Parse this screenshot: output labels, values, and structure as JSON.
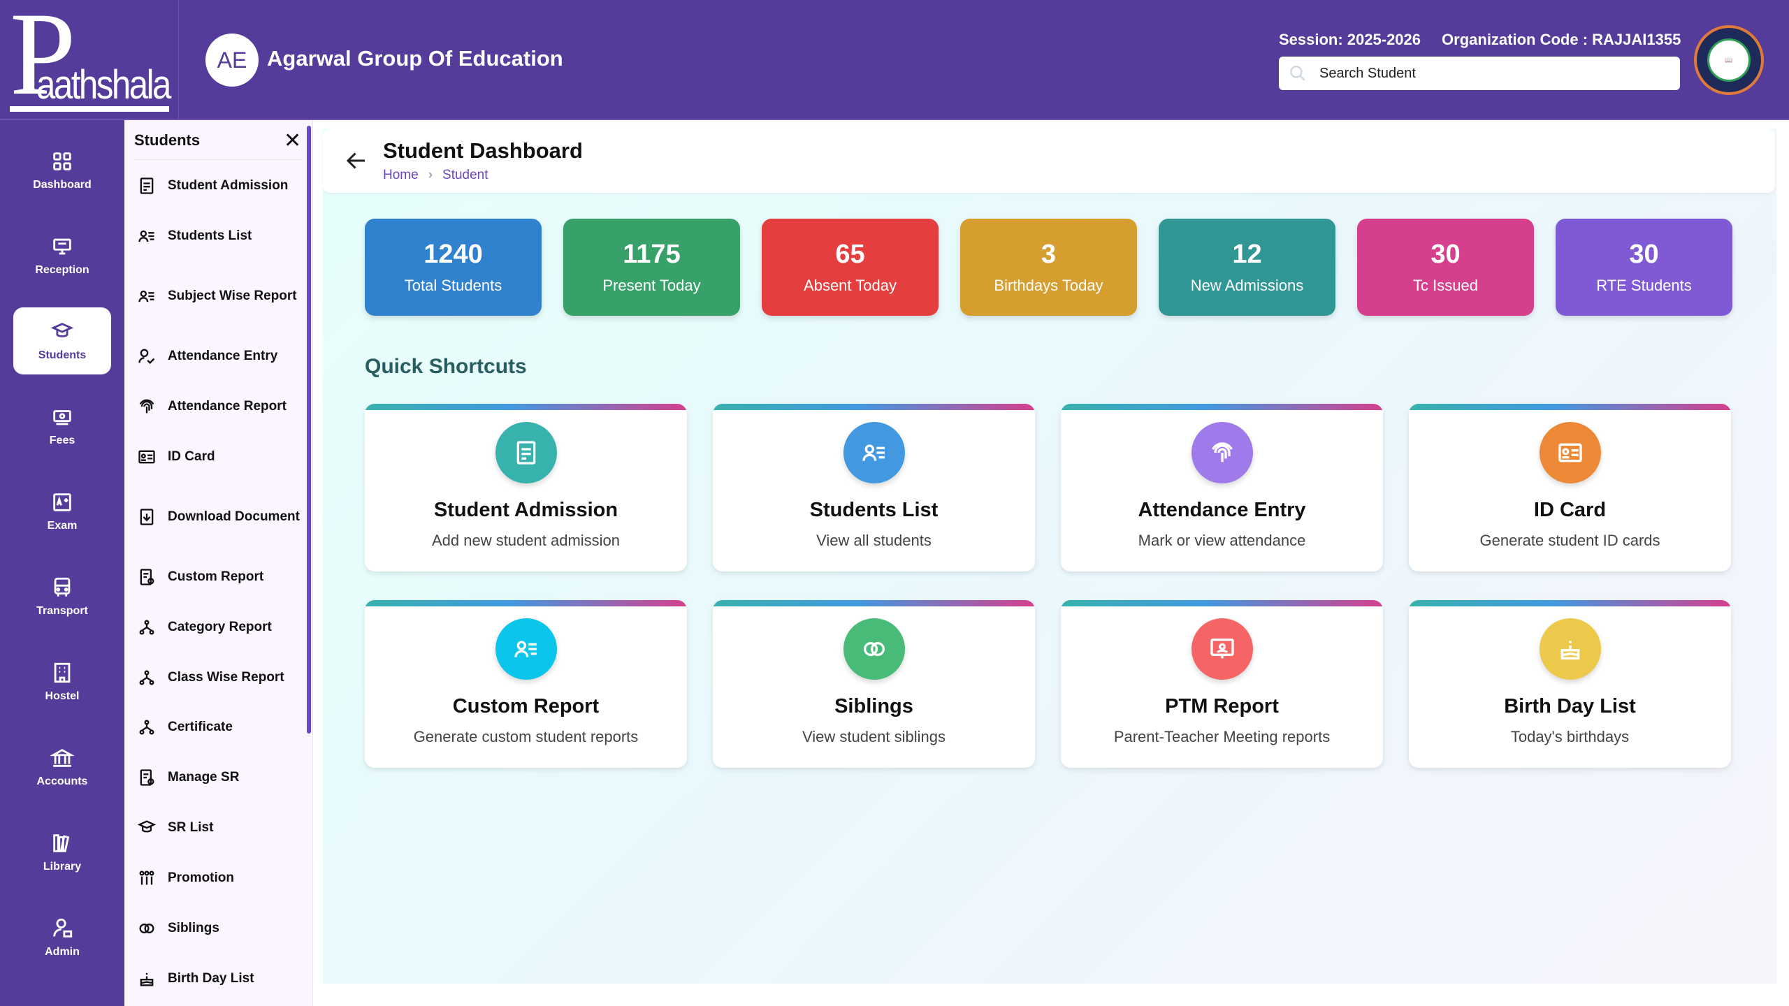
{
  "brand": {
    "logo_text": "Paathshala",
    "initials": "AE",
    "org_name": "Agarwal Group Of Education"
  },
  "header": {
    "session": "Session: 2025-2026",
    "org_code": "Organization Code : RAJJAI1355",
    "search_placeholder": "Search Student",
    "seal_text": "YOUR SCHOOL NAME HERE"
  },
  "rail": [
    {
      "label": "Dashboard",
      "icon": "grid-icon"
    },
    {
      "label": "Reception",
      "icon": "desk-icon"
    },
    {
      "label": "Students",
      "icon": "graduation-cap-icon",
      "active": true
    },
    {
      "label": "Fees",
      "icon": "money-icon"
    },
    {
      "label": "Exam",
      "icon": "grade-icon"
    },
    {
      "label": "Transport",
      "icon": "bus-icon"
    },
    {
      "label": "Hostel",
      "icon": "building-icon"
    },
    {
      "label": "Accounts",
      "icon": "bank-icon"
    },
    {
      "label": "Library",
      "icon": "books-icon"
    },
    {
      "label": "Admin",
      "icon": "user-lock-icon"
    }
  ],
  "submenu": {
    "title": "Students",
    "items": [
      {
        "label": "Student Admission",
        "icon": "form-icon"
      },
      {
        "label": "Students List",
        "icon": "user-list-icon"
      },
      {
        "label": "Subject Wise Report",
        "icon": "user-list-icon"
      },
      {
        "label": "Attendance Entry",
        "icon": "user-check-icon"
      },
      {
        "label": "Attendance Report",
        "icon": "fingerprint-icon"
      },
      {
        "label": "ID Card",
        "icon": "id-card-icon"
      },
      {
        "label": "Download Document",
        "icon": "download-doc-icon"
      },
      {
        "label": "Custom Report",
        "icon": "report-icon"
      },
      {
        "label": "Category Report",
        "icon": "hierarchy-icon"
      },
      {
        "label": "Class Wise Report",
        "icon": "hierarchy-icon"
      },
      {
        "label": "Certificate",
        "icon": "hierarchy-icon"
      },
      {
        "label": "Manage SR",
        "icon": "report-icon"
      },
      {
        "label": "SR List",
        "icon": "graduation-cap-icon"
      },
      {
        "label": "Promotion",
        "icon": "people-icon"
      },
      {
        "label": "Siblings",
        "icon": "rings-icon"
      },
      {
        "label": "Birth Day List",
        "icon": "cake-icon"
      }
    ]
  },
  "page": {
    "title": "Student Dashboard",
    "breadcrumb": [
      "Home",
      "Student"
    ]
  },
  "stats": [
    {
      "value": "1240",
      "label": "Total Students",
      "color": "#3182ce"
    },
    {
      "value": "1175",
      "label": "Present Today",
      "color": "#38a169"
    },
    {
      "value": "65",
      "label": "Absent Today",
      "color": "#e53e3e"
    },
    {
      "value": "3",
      "label": "Birthdays Today",
      "color": "#d69e2e"
    },
    {
      "value": "12",
      "label": "New Admissions",
      "color": "#319795"
    },
    {
      "value": "30",
      "label": "Tc Issued",
      "color": "#d53f8c"
    },
    {
      "value": "30",
      "label": "RTE Students",
      "color": "#805ad5"
    }
  ],
  "shortcuts_title": "Quick Shortcuts",
  "shortcuts": [
    {
      "title": "Student Admission",
      "desc": "Add new student admission",
      "color": "#38b2ac",
      "icon": "form-icon"
    },
    {
      "title": "Students List",
      "desc": "View all students",
      "color": "#4299e1",
      "icon": "user-list-icon"
    },
    {
      "title": "Attendance Entry",
      "desc": "Mark or view attendance",
      "color": "#9f7aea",
      "icon": "fingerprint-icon"
    },
    {
      "title": "ID Card",
      "desc": "Generate student ID cards",
      "color": "#ed8936",
      "icon": "id-card-icon"
    },
    {
      "title": "Custom Report",
      "desc": "Generate custom student reports",
      "color": "#0bc5ea",
      "icon": "user-list-icon"
    },
    {
      "title": "Siblings",
      "desc": "View student siblings",
      "color": "#48bb78",
      "icon": "rings-icon"
    },
    {
      "title": "PTM Report",
      "desc": "Parent-Teacher Meeting reports",
      "color": "#f56565",
      "icon": "presentation-icon"
    },
    {
      "title": "Birth Day List",
      "desc": "Today's birthdays",
      "color": "#ecc94b",
      "icon": "cake-icon"
    }
  ]
}
